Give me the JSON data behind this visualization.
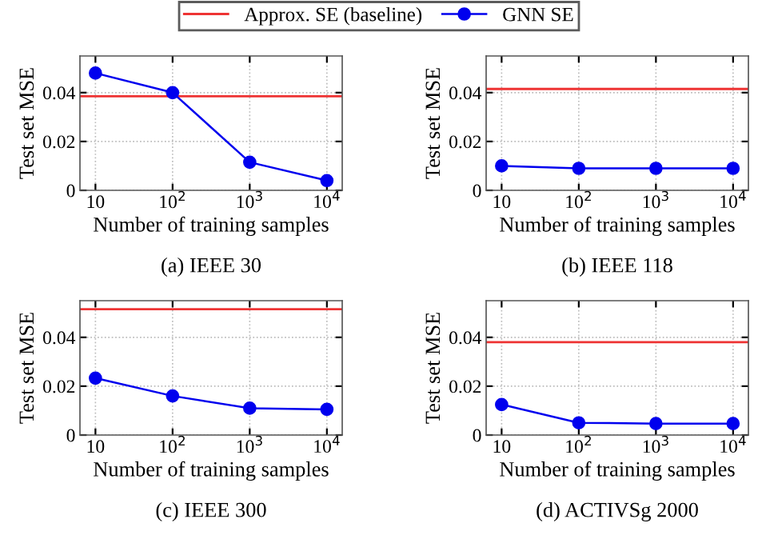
{
  "chart_data": [
    {
      "type": "line",
      "title": "(a) IEEE 30",
      "xlabel": "Number of training samples",
      "ylabel": "Test set MSE",
      "log": "x",
      "x": [
        10,
        100,
        1000,
        10000
      ],
      "series": [
        {
          "name": "GNN SE",
          "color": "#0000ee",
          "values": [
            0.048,
            0.04,
            0.0115,
            0.004
          ]
        }
      ],
      "ref_lines": [
        {
          "axis": "y",
          "value": 0.0385,
          "label": "Approx. SE (baseline)",
          "color": "#ee3333"
        }
      ],
      "xlim": [
        6.3,
        15800
      ],
      "xticks": [
        10,
        {
          "value": 100,
          "label": "10$^{2}$"
        },
        {
          "value": 1000,
          "label": "10$^{3}$"
        },
        {
          "value": 10000,
          "label": "10$^{4}$"
        }
      ],
      "ylim": [
        0,
        0.055
      ],
      "yticks": [
        0,
        0.02,
        0.04
      ],
      "grid": true,
      "marker": "circle",
      "line_style": "solid",
      "legend": "top"
    },
    {
      "type": "line",
      "title": "(b) IEEE 118",
      "xlabel": "Number of training samples",
      "ylabel": "Test set MSE",
      "log": "x",
      "x": [
        10,
        100,
        1000,
        10000
      ],
      "series": [
        {
          "color": "#0000ee",
          "values": [
            0.01,
            0.009,
            0.009,
            0.009
          ]
        }
      ],
      "ref_lines": [
        {
          "axis": "y",
          "value": 0.0415,
          "color": "#ee3333"
        }
      ],
      "xlim": [
        6.3,
        15800
      ],
      "xticks": [
        10,
        {
          "value": 100,
          "label": "10$^{2}$"
        },
        {
          "value": 1000,
          "label": "10$^{3}$"
        },
        {
          "value": 10000,
          "label": "10$^{4}$"
        }
      ],
      "ylim": [
        0,
        0.055
      ],
      "yticks": [
        0,
        0.02,
        0.04
      ],
      "grid": true,
      "marker": "circle",
      "line_style": "solid"
    },
    {
      "type": "line",
      "title": "(c) IEEE 300",
      "xlabel": "Number of training samples",
      "ylabel": "Test set MSE",
      "log": "x",
      "x": [
        10,
        100,
        1000,
        10000
      ],
      "series": [
        {
          "color": "#0000ee",
          "values": [
            0.0233,
            0.016,
            0.011,
            0.0105
          ]
        }
      ],
      "ref_lines": [
        {
          "axis": "y",
          "value": 0.0515,
          "color": "#ee3333"
        }
      ],
      "xlim": [
        6.3,
        15800
      ],
      "xticks": [
        10,
        {
          "value": 100,
          "label": "10$^{2}$"
        },
        {
          "value": 1000,
          "label": "10$^{3}$"
        },
        {
          "value": 10000,
          "label": "10$^{4}$"
        }
      ],
      "ylim": [
        0,
        0.055
      ],
      "yticks": [
        0,
        0.02,
        0.04
      ],
      "grid": true,
      "marker": "circle",
      "line_style": "solid"
    },
    {
      "type": "line",
      "title": "(d) ACTIVSg 2000",
      "xlabel": "Number of training samples",
      "ylabel": "Test set MSE",
      "log": "x",
      "x": [
        10,
        100,
        1000,
        10000
      ],
      "series": [
        {
          "color": "#0000ee",
          "values": [
            0.0125,
            0.005,
            0.0047,
            0.0047
          ]
        }
      ],
      "ref_lines": [
        {
          "axis": "y",
          "value": 0.038,
          "color": "#ee3333"
        }
      ],
      "xlim": [
        6.3,
        15800
      ],
      "xticks": [
        10,
        {
          "value": 100,
          "label": "10$^{2}$"
        },
        {
          "value": 1000,
          "label": "10$^{3}$"
        },
        {
          "value": 10000,
          "label": "10$^{4}$"
        }
      ],
      "ylim": [
        0,
        0.055
      ],
      "yticks": [
        0,
        0.02,
        0.04
      ],
      "grid": true,
      "marker": "circle",
      "line_style": "solid"
    }
  ]
}
